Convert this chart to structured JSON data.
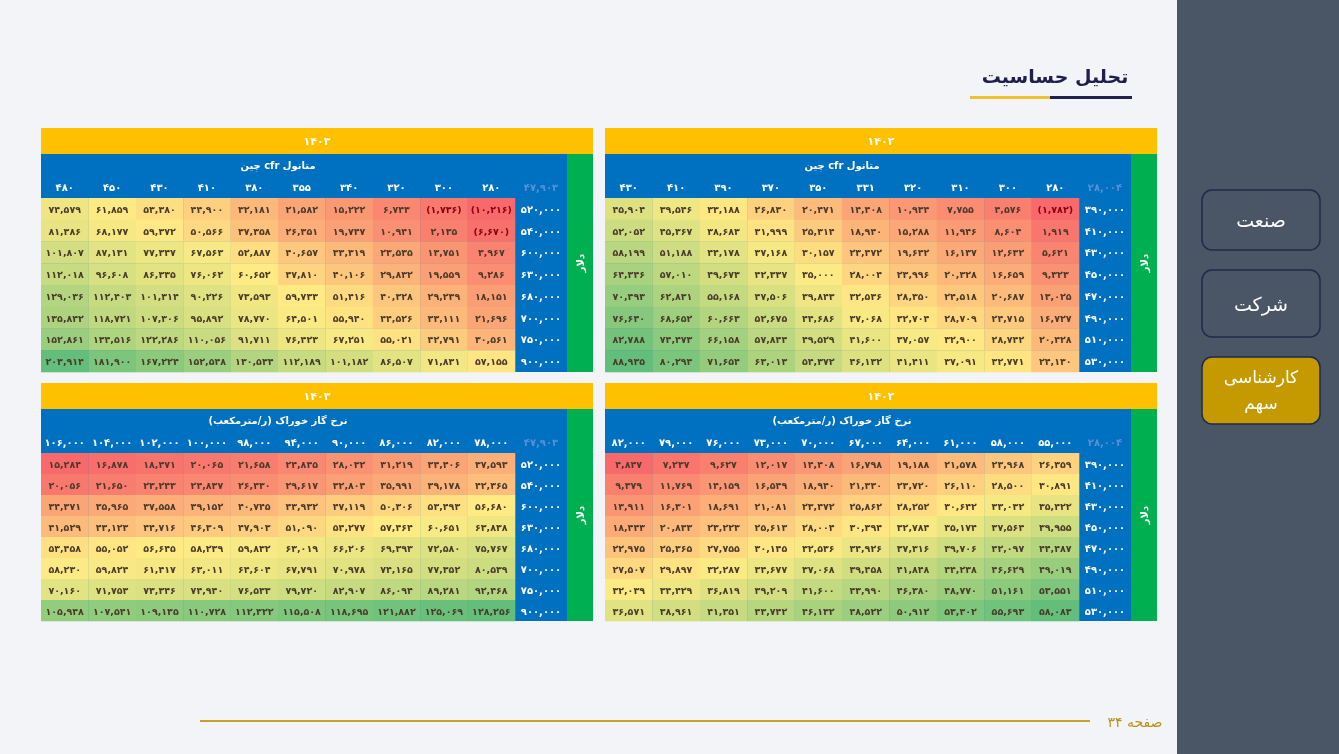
{
  "chart_data": [
    {
      "type": "other",
      "title": "تحلیل حساسیت",
      "annotations": [
        "صنعت",
        "شرکت",
        "کارشناسی سهم",
        "صفحه ۳۴"
      ]
    },
    {
      "type": "heatmap",
      "title": "۱۴۰۲",
      "xlabel": "متانول cfr چین",
      "ylabel": "دلار",
      "annotations": [
        "۲۸,۰۰۴"
      ],
      "categories": [
        "۴۳۰",
        "۴۱۰",
        "۳۹۰",
        "۳۷۰",
        "۳۵۰",
        "۳۳۱",
        "۳۲۰",
        "۳۱۰",
        "۳۰۰",
        "۲۸۰"
      ],
      "y_categories": [
        "۳۹۰,۰۰۰",
        "۴۱۰,۰۰۰",
        "۴۳۰,۰۰۰",
        "۴۵۰,۰۰۰",
        "۴۷۰,۰۰۰",
        "۴۹۰,۰۰۰",
        "۵۱۰,۰۰۰",
        "۵۳۰,۰۰۰"
      ],
      "cell_labels": [
        [
          "۴۵,۹۰۴",
          "۳۹,۵۴۶",
          "۳۳,۱۸۸",
          "۲۶,۸۳۰",
          "۲۰,۴۷۱",
          "۱۴,۴۰۸",
          "۱۰,۹۳۴",
          "۷,۷۵۵",
          "۴,۵۷۶",
          "(۱,۷۸۲)"
        ],
        [
          "۵۲,۰۵۲",
          "۴۵,۳۶۷",
          "۳۸,۶۸۳",
          "۳۱,۹۹۹",
          "۲۵,۳۱۴",
          "۱۸,۹۴۰",
          "۱۵,۲۸۸",
          "۱۱,۹۴۶",
          "۸,۶۰۴",
          "۱,۹۱۹"
        ],
        [
          "۵۸,۱۹۹",
          "۵۱,۱۸۸",
          "۴۴,۱۷۸",
          "۳۷,۱۶۸",
          "۳۰,۱۵۷",
          "۲۳,۴۷۲",
          "۱۹,۶۴۲",
          "۱۶,۱۳۷",
          "۱۲,۶۳۲",
          "۵,۶۲۱"
        ],
        [
          "۶۴,۳۴۶",
          "۵۷,۰۱۰",
          "۴۹,۶۷۳",
          "۴۲,۳۳۷",
          "۳۵,۰۰۰",
          "۲۸,۰۰۴",
          "۲۳,۹۹۶",
          "۲۰,۳۲۸",
          "۱۶,۶۵۹",
          "۹,۳۲۳"
        ],
        [
          "۷۰,۴۹۳",
          "۶۲,۸۳۱",
          "۵۵,۱۶۸",
          "۴۷,۵۰۶",
          "۳۹,۸۴۳",
          "۳۲,۵۳۶",
          "۲۸,۳۵۰",
          "۲۴,۵۱۸",
          "۲۰,۶۸۷",
          "۱۳,۰۲۵"
        ],
        [
          "۷۶,۶۴۰",
          "۶۸,۶۵۲",
          "۶۰,۶۶۳",
          "۵۲,۶۷۵",
          "۴۴,۶۸۶",
          "۳۷,۰۶۸",
          "۳۲,۷۰۴",
          "۲۸,۷۰۹",
          "۲۴,۷۱۵",
          "۱۶,۷۲۷"
        ],
        [
          "۸۲,۷۸۸",
          "۷۴,۴۷۳",
          "۶۶,۱۵۸",
          "۵۷,۸۴۴",
          "۴۹,۵۲۹",
          "۴۱,۶۰۰",
          "۳۷,۰۵۷",
          "۳۲,۹۰۰",
          "۲۸,۷۴۲",
          "۲۰,۴۲۸"
        ],
        [
          "۸۸,۹۳۵",
          "۸۰,۲۹۴",
          "۷۱,۶۵۴",
          "۶۳,۰۱۳",
          "۵۴,۳۷۲",
          "۴۶,۱۳۲",
          "۴۱,۴۱۱",
          "۳۷,۰۹۱",
          "۳۲,۷۷۱",
          "۲۴,۱۳۰"
        ]
      ],
      "cells": [
        [
          45904,
          39546,
          33188,
          26830,
          20471,
          14408,
          10934,
          7755,
          4576,
          -1782
        ],
        [
          52052,
          45367,
          38683,
          31999,
          25314,
          18940,
          15288,
          11946,
          8604,
          1919
        ],
        [
          58199,
          51188,
          44178,
          37168,
          30157,
          23472,
          19642,
          16137,
          12632,
          5621
        ],
        [
          64346,
          57010,
          49673,
          42337,
          35000,
          28004,
          23996,
          20328,
          16659,
          9323
        ],
        [
          70493,
          62831,
          55168,
          47506,
          39843,
          32536,
          28350,
          24518,
          20687,
          13025
        ],
        [
          76640,
          68652,
          60663,
          52675,
          44686,
          37068,
          32704,
          28709,
          24715,
          16727
        ],
        [
          82788,
          74473,
          66158,
          57844,
          49529,
          41600,
          37057,
          32900,
          28742,
          20428
        ],
        [
          88935,
          80294,
          71654,
          63013,
          54372,
          46132,
          41411,
          37091,
          32771,
          24130
        ]
      ]
    },
    {
      "type": "heatmap",
      "title": "۱۴۰۳",
      "xlabel": "متانول cfr چین",
      "ylabel": "دلار",
      "annotations": [
        "۴۷,۹۰۳"
      ],
      "categories": [
        "۴۸۰",
        "۴۵۰",
        "۴۳۰",
        "۴۱۰",
        "۳۸۰",
        "۳۵۵",
        "۳۴۰",
        "۳۲۰",
        "۳۰۰",
        "۲۸۰"
      ],
      "y_categories": [
        "۵۲۰,۰۰۰",
        "۵۴۰,۰۰۰",
        "۶۰۰,۰۰۰",
        "۶۳۰,۰۰۰",
        "۶۸۰,۰۰۰",
        "۷۰۰,۰۰۰",
        "۷۵۰,۰۰۰",
        "۹۰۰,۰۰۰"
      ],
      "cell_labels": [
        [
          "۷۴,۵۷۹",
          "۶۱,۸۵۹",
          "۵۳,۳۸۰",
          "۴۴,۹۰۰",
          "۳۲,۱۸۱",
          "۲۱,۵۸۲",
          "۱۵,۲۲۲",
          "۶,۷۴۳",
          "(۱,۷۳۶)",
          "(۱۰,۲۱۶)"
        ],
        [
          "۸۱,۳۸۶",
          "۶۸,۱۷۷",
          "۵۹,۳۷۲",
          "۵۰,۵۶۶",
          "۳۷,۳۵۸",
          "۲۶,۳۵۱",
          "۱۹,۷۴۷",
          "۱۰,۹۴۱",
          "۲,۱۳۵",
          "(۶,۶۷۰)"
        ],
        [
          "۱۰۱,۸۰۷",
          "۸۷,۱۳۱",
          "۷۷,۳۴۷",
          "۶۷,۵۶۳",
          "۵۲,۸۸۷",
          "۴۰,۶۵۷",
          "۳۳,۳۱۹",
          "۲۳,۵۳۵",
          "۱۳,۷۵۱",
          "۳,۹۶۷"
        ],
        [
          "۱۱۲,۰۱۸",
          "۹۶,۶۰۸",
          "۸۶,۳۳۵",
          "۷۶,۰۶۲",
          "۶۰,۶۵۲",
          "۴۷,۸۱۰",
          "۴۰,۱۰۶",
          "۲۹,۸۳۲",
          "۱۹,۵۵۹",
          "۹,۲۸۶"
        ],
        [
          "۱۲۹,۰۳۶",
          "۱۱۲,۴۰۳",
          "۱۰۱,۳۱۴",
          "۹۰,۲۲۶",
          "۷۳,۵۹۳",
          "۵۹,۷۳۳",
          "۵۱,۴۱۶",
          "۴۰,۳۲۸",
          "۲۹,۲۳۹",
          "۱۸,۱۵۱"
        ],
        [
          "۱۳۵,۸۴۲",
          "۱۱۸,۷۲۱",
          "۱۰۷,۳۰۶",
          "۹۵,۸۹۲",
          "۷۸,۷۷۰",
          "۶۴,۵۰۱",
          "۵۵,۹۴۰",
          "۴۴,۵۲۶",
          "۳۳,۱۱۱",
          "۲۱,۶۹۶"
        ],
        [
          "۱۵۲,۸۶۱",
          "۱۳۴,۵۱۶",
          "۱۲۲,۲۸۶",
          "۱۱۰,۰۵۶",
          "۹۱,۷۱۱",
          "۷۶,۴۲۳",
          "۶۷,۲۵۱",
          "۵۵,۰۲۱",
          "۴۲,۷۹۱",
          "۳۰,۵۶۱"
        ],
        [
          "۲۰۳,۹۱۴",
          "۱۸۱,۹۰۰",
          "۱۶۷,۲۲۴",
          "۱۵۲,۵۴۸",
          "۱۳۰,۵۳۴",
          "۱۱۲,۱۸۹",
          "۱۰۱,۱۸۲",
          "۸۶,۵۰۷",
          "۷۱,۸۳۱",
          "۵۷,۱۵۵"
        ]
      ],
      "cells": [
        [
          74579,
          61859,
          53380,
          44900,
          32181,
          21582,
          15222,
          6743,
          -1736,
          -10216
        ],
        [
          81386,
          68177,
          59372,
          50566,
          37358,
          26351,
          19747,
          10941,
          2135,
          -6670
        ],
        [
          101807,
          87131,
          77347,
          67563,
          52887,
          40657,
          33319,
          23535,
          13751,
          3967
        ],
        [
          112018,
          96608,
          86335,
          76062,
          60652,
          47810,
          40106,
          29832,
          19559,
          9286
        ],
        [
          129036,
          112403,
          101314,
          90226,
          73593,
          59733,
          51416,
          40328,
          29239,
          18151
        ],
        [
          135842,
          118721,
          107306,
          95892,
          78770,
          64501,
          55940,
          44526,
          33111,
          21696
        ],
        [
          152861,
          134516,
          122286,
          110056,
          91711,
          76423,
          67251,
          55021,
          42791,
          30561
        ],
        [
          203914,
          181900,
          167224,
          152548,
          130534,
          112189,
          101182,
          86507,
          71831,
          57155
        ]
      ]
    },
    {
      "type": "heatmap",
      "title": "۱۴۰۲",
      "xlabel": "نرخ گاز خوراک (ر/مترمکعب)",
      "ylabel": "دلار",
      "annotations": [
        "۲۸,۰۰۴"
      ],
      "categories": [
        "۸۲,۰۰۰",
        "۷۹,۰۰۰",
        "۷۶,۰۰۰",
        "۷۳,۰۰۰",
        "۷۰,۰۰۰",
        "۶۷,۰۰۰",
        "۶۴,۰۰۰",
        "۶۱,۰۰۰",
        "۵۸,۰۰۰",
        "۵۵,۰۰۰"
      ],
      "y_categories": [
        "۳۹۰,۰۰۰",
        "۴۱۰,۰۰۰",
        "۴۳۰,۰۰۰",
        "۴۵۰,۰۰۰",
        "۴۷۰,۰۰۰",
        "۴۹۰,۰۰۰",
        "۵۱۰,۰۰۰",
        "۵۳۰,۰۰۰"
      ],
      "cell_labels": [
        [
          "۴,۸۴۷",
          "۷,۲۳۷",
          "۹,۶۲۷",
          "۱۲,۰۱۷",
          "۱۴,۴۰۸",
          "۱۶,۷۹۸",
          "۱۹,۱۸۸",
          "۲۱,۵۷۸",
          "۲۳,۹۶۸",
          "۲۶,۳۵۹"
        ],
        [
          "۹,۳۷۹",
          "۱۱,۷۶۹",
          "۱۴,۱۵۹",
          "۱۶,۵۴۹",
          "۱۸,۹۴۰",
          "۲۱,۳۳۰",
          "۲۳,۷۲۰",
          "۲۶,۱۱۰",
          "۲۸,۵۰۰",
          "۳۰,۸۹۱"
        ],
        [
          "۱۳,۹۱۱",
          "۱۶,۳۰۱",
          "۱۸,۶۹۱",
          "۲۱,۰۸۱",
          "۲۳,۴۷۲",
          "۲۵,۸۶۲",
          "۲۸,۲۵۲",
          "۳۰,۶۴۲",
          "۳۳,۰۳۲",
          "۳۵,۴۲۲"
        ],
        [
          "۱۸,۴۴۳",
          "۲۰,۸۳۳",
          "۲۳,۲۲۳",
          "۲۵,۶۱۳",
          "۲۸,۰۰۴",
          "۳۰,۳۹۴",
          "۳۲,۷۸۴",
          "۳۵,۱۷۴",
          "۳۷,۵۶۴",
          "۳۹,۹۵۵"
        ],
        [
          "۲۲,۹۷۵",
          "۲۵,۳۶۵",
          "۲۷,۷۵۵",
          "۳۰,۱۴۵",
          "۳۲,۵۳۶",
          "۳۴,۹۲۶",
          "۳۷,۳۱۶",
          "۳۹,۷۰۶",
          "۴۲,۰۹۷",
          "۴۴,۴۸۷"
        ],
        [
          "۲۷,۵۰۷",
          "۲۹,۸۹۷",
          "۳۲,۲۸۷",
          "۳۴,۶۷۷",
          "۳۷,۰۶۸",
          "۳۹,۴۵۸",
          "۴۱,۸۴۸",
          "۴۴,۲۳۸",
          "۴۶,۶۲۹",
          "۴۹,۰۱۹"
        ],
        [
          "۳۲,۰۳۹",
          "۳۴,۴۲۹",
          "۳۶,۸۱۹",
          "۳۹,۲۰۹",
          "۴۱,۶۰۰",
          "۴۳,۹۹۰",
          "۴۶,۳۸۰",
          "۴۸,۷۷۰",
          "۵۱,۱۶۱",
          "۵۳,۵۵۱"
        ],
        [
          "۳۶,۵۷۱",
          "۳۸,۹۶۱",
          "۴۱,۳۵۱",
          "۴۳,۷۴۲",
          "۴۶,۱۳۲",
          "۴۸,۵۲۲",
          "۵۰,۹۱۲",
          "۵۳,۳۰۲",
          "۵۵,۶۹۳",
          "۵۸,۰۸۳"
        ]
      ],
      "cells": [
        [
          4847,
          7237,
          9627,
          12017,
          14408,
          16798,
          19188,
          21578,
          23968,
          26359
        ],
        [
          9379,
          11769,
          14159,
          16549,
          18940,
          21330,
          23720,
          26110,
          28500,
          30891
        ],
        [
          13911,
          16301,
          18691,
          21081,
          23472,
          25862,
          28252,
          30642,
          33032,
          35422
        ],
        [
          18443,
          20833,
          23223,
          25613,
          28004,
          30394,
          32784,
          35174,
          37564,
          39955
        ],
        [
          22975,
          25365,
          27755,
          30145,
          32536,
          34926,
          37316,
          39706,
          42097,
          44487
        ],
        [
          27507,
          29897,
          32287,
          34677,
          37068,
          39458,
          41848,
          44238,
          46629,
          49019
        ],
        [
          32039,
          34429,
          36819,
          39209,
          41600,
          43990,
          46380,
          48770,
          51161,
          53551
        ],
        [
          36571,
          38961,
          41351,
          43742,
          46132,
          48522,
          50912,
          53302,
          55693,
          58083
        ]
      ]
    },
    {
      "type": "heatmap",
      "title": "۱۴۰۳",
      "xlabel": "نرخ گاز خوراک (ر/مترمکعب)",
      "ylabel": "دلار",
      "annotations": [
        "۴۷,۹۰۳"
      ],
      "categories": [
        "۱۰۶,۰۰۰",
        "۱۰۴,۰۰۰",
        "۱۰۲,۰۰۰",
        "۱۰۰,۰۰۰",
        "۹۸,۰۰۰",
        "۹۴,۰۰۰",
        "۹۰,۰۰۰",
        "۸۶,۰۰۰",
        "۸۲,۰۰۰",
        "۷۸,۰۰۰"
      ],
      "y_categories": [
        "۵۲۰,۰۰۰",
        "۵۴۰,۰۰۰",
        "۶۰۰,۰۰۰",
        "۶۳۰,۰۰۰",
        "۶۸۰,۰۰۰",
        "۷۰۰,۰۰۰",
        "۷۵۰,۰۰۰",
        "۹۰۰,۰۰۰"
      ],
      "cell_labels": [
        [
          "۱۵,۲۸۴",
          "۱۶,۸۷۸",
          "۱۸,۴۷۱",
          "۲۰,۰۶۵",
          "۲۱,۶۵۸",
          "۲۴,۸۴۵",
          "۲۸,۰۳۲",
          "۳۱,۲۱۹",
          "۳۴,۴۰۶",
          "۳۷,۵۹۳"
        ],
        [
          "۲۰,۰۵۶",
          "۲۱,۶۵۰",
          "۲۳,۲۴۳",
          "۲۴,۸۳۷",
          "۲۶,۴۳۰",
          "۲۹,۶۱۷",
          "۳۲,۸۰۴",
          "۳۵,۹۹۱",
          "۳۹,۱۷۸",
          "۴۲,۳۶۵"
        ],
        [
          "۳۴,۳۷۱",
          "۳۵,۹۶۵",
          "۳۷,۵۵۸",
          "۳۹,۱۵۲",
          "۴۰,۷۴۵",
          "۴۳,۹۳۲",
          "۴۷,۱۱۹",
          "۵۰,۳۰۶",
          "۵۳,۴۹۳",
          "۵۶,۶۸۰"
        ],
        [
          "۴۱,۵۲۹",
          "۴۳,۱۲۳",
          "۴۴,۷۱۶",
          "۴۶,۳۰۹",
          "۴۷,۹۰۳",
          "۵۱,۰۹۰",
          "۵۴,۲۷۷",
          "۵۷,۴۶۴",
          "۶۰,۶۵۱",
          "۶۳,۸۳۸"
        ],
        [
          "۵۳,۴۵۸",
          "۵۵,۰۵۲",
          "۵۶,۶۴۵",
          "۵۸,۲۳۹",
          "۵۹,۸۳۲",
          "۶۳,۰۱۹",
          "۶۶,۲۰۶",
          "۶۹,۳۹۳",
          "۷۲,۵۸۰",
          "۷۵,۷۶۷"
        ],
        [
          "۵۸,۲۳۰",
          "۵۹,۸۲۴",
          "۶۱,۴۱۷",
          "۶۳,۰۱۱",
          "۶۴,۶۰۴",
          "۶۷,۷۹۱",
          "۷۰,۹۷۸",
          "۷۴,۱۶۵",
          "۷۷,۳۵۲",
          "۸۰,۵۳۹"
        ],
        [
          "۷۰,۱۶۰",
          "۷۱,۷۵۳",
          "۷۳,۳۴۶",
          "۷۴,۹۴۰",
          "۷۶,۵۳۳",
          "۷۹,۷۲۰",
          "۸۲,۹۰۷",
          "۸۶,۰۹۴",
          "۸۹,۲۸۱",
          "۹۲,۴۶۸"
        ],
        [
          "۱۰۵,۹۴۸",
          "۱۰۷,۵۴۱",
          "۱۰۹,۱۳۵",
          "۱۱۰,۷۲۸",
          "۱۱۲,۳۲۲",
          "۱۱۵,۵۰۸",
          "۱۱۸,۶۹۵",
          "۱۲۱,۸۸۲",
          "۱۲۵,۰۶۹",
          "۱۲۸,۲۵۶"
        ]
      ],
      "cells": [
        [
          15284,
          16878,
          18471,
          20065,
          21658,
          24845,
          28032,
          31219,
          34406,
          37593
        ],
        [
          20056,
          21650,
          23243,
          24837,
          26430,
          29617,
          32804,
          35991,
          39178,
          42365
        ],
        [
          34371,
          35965,
          37558,
          39152,
          40745,
          43932,
          47119,
          50306,
          53493,
          56680
        ],
        [
          41529,
          43123,
          44716,
          46309,
          47903,
          51090,
          54277,
          57464,
          60651,
          63838
        ],
        [
          53458,
          55052,
          56645,
          58239,
          59832,
          63019,
          66206,
          69393,
          72580,
          75767
        ],
        [
          58230,
          59824,
          61417,
          63011,
          64604,
          67791,
          70978,
          74165,
          77352,
          80539
        ],
        [
          70160,
          71753,
          73346,
          74940,
          76533,
          79720,
          82907,
          86094,
          89281,
          92468
        ],
        [
          105948,
          107541,
          109135,
          110728,
          112322,
          115508,
          118695,
          121882,
          125069,
          128256
        ]
      ]
    }
  ]
}
